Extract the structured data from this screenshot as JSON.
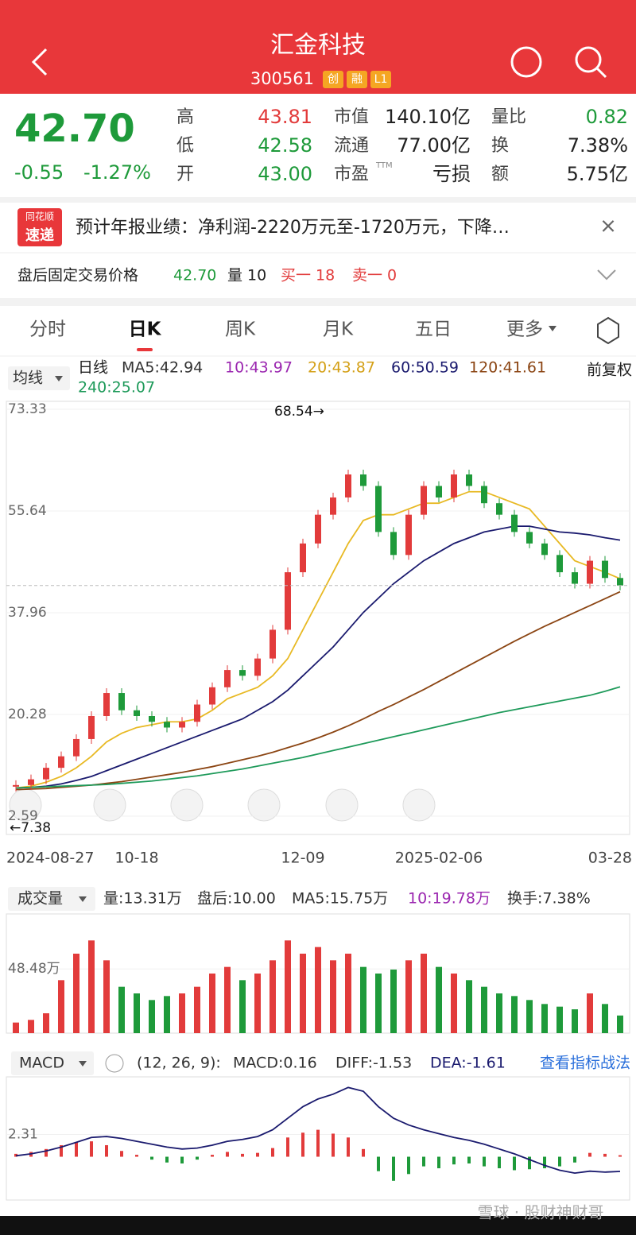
{
  "header": {
    "title": "汇金科技",
    "code": "300561",
    "tags": [
      "创",
      "融",
      "L1"
    ]
  },
  "quote": {
    "price": "42.70",
    "change": "-0.55",
    "change_pct": "-1.27%",
    "ttm": "TTM",
    "fields": [
      {
        "label": "高",
        "value": "43.81",
        "color": "#e23b3b"
      },
      {
        "label": "低",
        "value": "42.58",
        "color": "#1e9a3a"
      },
      {
        "label": "开",
        "value": "43.00",
        "color": "#1e9a3a"
      },
      {
        "label": "市值",
        "value": "140.10亿",
        "color": "#222"
      },
      {
        "label": "流通",
        "value": "77.00亿",
        "color": "#222"
      },
      {
        "label": "市盈",
        "value": "亏损",
        "color": "#222"
      },
      {
        "label": "量比",
        "value": "0.82",
        "color": "#1e9a3a"
      },
      {
        "label": "换",
        "value": "7.38%",
        "color": "#222"
      },
      {
        "label": "额",
        "value": "5.75亿",
        "color": "#222"
      }
    ]
  },
  "news": {
    "badge_top": "同花顺",
    "badge_bottom": "速递",
    "text": "预计年报业绩：净利润-2220万元至-1720万元，下降…",
    "close": "×"
  },
  "after_hours": {
    "label": "盘后固定交易价格",
    "price": "42.70",
    "volume": "量 10",
    "bid": "买一 18",
    "ask": "卖一 0"
  },
  "tabs": [
    "分时",
    "日K",
    "周K",
    "月K",
    "五日",
    "更多"
  ],
  "kline": {
    "indicator": "均线",
    "period": "日线",
    "adjust": "前复权",
    "ma_labels": [
      {
        "label": "MA5:42.94",
        "color": "#333"
      },
      {
        "label": "10:43.97",
        "color": "#9b27b0"
      },
      {
        "label": "20:43.87",
        "color": "#d4a017"
      },
      {
        "label": "60:50.59",
        "color": "#1a1a6e"
      },
      {
        "label": "120:41.61",
        "color": "#8b4513"
      },
      {
        "label": "240:25.07",
        "color": "#1e9a5a"
      }
    ],
    "ylim": [
      2.59,
      73.33
    ],
    "yticks": [
      73.33,
      55.64,
      37.96,
      20.28,
      2.59
    ],
    "high_label": "68.54→",
    "low_label": "←7.38",
    "dates": [
      {
        "index": 0,
        "label": "2024-08-27"
      },
      {
        "index": 8,
        "label": "10-18"
      },
      {
        "index": 19,
        "label": "12-09"
      },
      {
        "index": 28,
        "label": "2025-02-06"
      },
      {
        "index": 40,
        "label": "03-28"
      }
    ],
    "up_color": "#e23b3b",
    "down_color": "#1e9a3a",
    "close": [
      8,
      9,
      11,
      13,
      16,
      20,
      24,
      21,
      20,
      19,
      18,
      19,
      22,
      25,
      28,
      27,
      30,
      35,
      45,
      50,
      55,
      58,
      62,
      60,
      52,
      48,
      55,
      60,
      58,
      62,
      60,
      57,
      55,
      52,
      50,
      48,
      45,
      43,
      47,
      44,
      42.7
    ],
    "ma_lines": [
      {
        "name": "MA20",
        "color": "#e8b923",
        "values": [
          7.5,
          7.8,
          8.5,
          9.5,
          11,
          13,
          15.5,
          17,
          18,
          18.5,
          19,
          19,
          19.5,
          21,
          23,
          24,
          25,
          27,
          30,
          35,
          40,
          45,
          50,
          54,
          55,
          55,
          56,
          57,
          57,
          58,
          59,
          59,
          58,
          57,
          56,
          53,
          50,
          47,
          46,
          45,
          43.87
        ]
      },
      {
        "name": "MA60",
        "color": "#1a1a6e",
        "values": [
          7.5,
          7.6,
          7.8,
          8.2,
          8.8,
          9.5,
          10.5,
          11.5,
          12.5,
          13.5,
          14.5,
          15.5,
          16.5,
          17.5,
          18.5,
          19.5,
          21,
          22.5,
          24.5,
          27,
          29.5,
          32,
          35,
          38,
          40.5,
          43,
          45,
          47,
          48.5,
          50,
          51,
          52,
          52.5,
          53,
          53,
          52.5,
          52,
          51.8,
          51.5,
          51,
          50.59
        ]
      },
      {
        "name": "MA120",
        "color": "#8b4513",
        "values": [
          7.2,
          7.3,
          7.4,
          7.6,
          7.8,
          8,
          8.3,
          8.6,
          9,
          9.4,
          9.8,
          10.2,
          10.7,
          11.2,
          11.8,
          12.4,
          13,
          13.7,
          14.5,
          15.3,
          16.2,
          17.2,
          18.3,
          19.5,
          20.8,
          22,
          23.3,
          24.6,
          26,
          27.4,
          28.8,
          30.2,
          31.6,
          33,
          34.3,
          35.6,
          36.8,
          38,
          39.2,
          40.4,
          41.61
        ]
      },
      {
        "name": "MA240",
        "color": "#1e9a5a",
        "values": [
          7.5,
          7.6,
          7.7,
          7.8,
          7.9,
          8,
          8.1,
          8.3,
          8.5,
          8.7,
          9,
          9.3,
          9.6,
          10,
          10.4,
          10.8,
          11.3,
          11.8,
          12.3,
          12.8,
          13.4,
          14,
          14.6,
          15.2,
          15.8,
          16.4,
          17,
          17.6,
          18.2,
          18.8,
          19.4,
          20,
          20.6,
          21.1,
          21.6,
          22.1,
          22.6,
          23.1,
          23.6,
          24.3,
          25.07
        ]
      }
    ]
  },
  "volume": {
    "indicator": "成交量",
    "labels": [
      {
        "label": "量:13.31万",
        "color": "#333"
      },
      {
        "label": "盘后:10.00",
        "color": "#333"
      },
      {
        "label": "MA5:15.75万",
        "color": "#333"
      },
      {
        "label": "10:19.78万",
        "color": "#9b27b0"
      },
      {
        "label": "换手:7.38%",
        "color": "#333"
      }
    ],
    "ylim": [
      0,
      90
    ],
    "yticks": [
      {
        "value": 48.48,
        "label": "48.48万"
      }
    ],
    "values": [
      8,
      10,
      15,
      40,
      60,
      70,
      55,
      35,
      30,
      25,
      28,
      30,
      35,
      45,
      50,
      40,
      45,
      55,
      70,
      60,
      65,
      55,
      60,
      50,
      45,
      48,
      55,
      60,
      50,
      45,
      40,
      35,
      30,
      28,
      25,
      22,
      20,
      18,
      30,
      22,
      13.31
    ]
  },
  "macd": {
    "indicator": "MACD",
    "labels": [
      {
        "label": "(12, 26, 9):",
        "color": "#333"
      },
      {
        "label": "MACD:0.16",
        "color": "#333"
      },
      {
        "label": "DIFF:-1.53",
        "color": "#333"
      },
      {
        "label": "DEA:-1.61",
        "color": "#1a1a6e"
      }
    ],
    "link": "查看指标战法",
    "ylim": [
      -4.5,
      8.3
    ],
    "yticks": [
      2.31
    ],
    "histogram": [
      0.3,
      0.5,
      0.8,
      1.2,
      1.5,
      1.6,
      1.2,
      0.6,
      0.2,
      -0.3,
      -0.6,
      -0.7,
      -0.3,
      0.2,
      0.5,
      0.3,
      0.4,
      0.9,
      2,
      2.5,
      2.8,
      2.4,
      2,
      0.8,
      -1.5,
      -2.5,
      -1.8,
      -1,
      -1.2,
      -0.8,
      -0.7,
      -1,
      -1.2,
      -1.4,
      -1.3,
      -1.2,
      -1,
      -0.6,
      0.4,
      0.3,
      0.16
    ],
    "diff": [
      0.1,
      0.3,
      0.6,
      1,
      1.5,
      2,
      2.1,
      1.9,
      1.6,
      1.3,
      1,
      0.8,
      0.9,
      1.2,
      1.6,
      1.8,
      2.1,
      2.8,
      4,
      5.2,
      6,
      6.5,
      7.2,
      6.8,
      5.2,
      4,
      3.3,
      2.8,
      2.4,
      2,
      1.7,
      1.3,
      0.8,
      0.3,
      -0.3,
      -0.9,
      -1.4,
      -1.7,
      -1.5,
      -1.6,
      -1.53
    ]
  },
  "watermark": "雪球 · 股财神财哥"
}
